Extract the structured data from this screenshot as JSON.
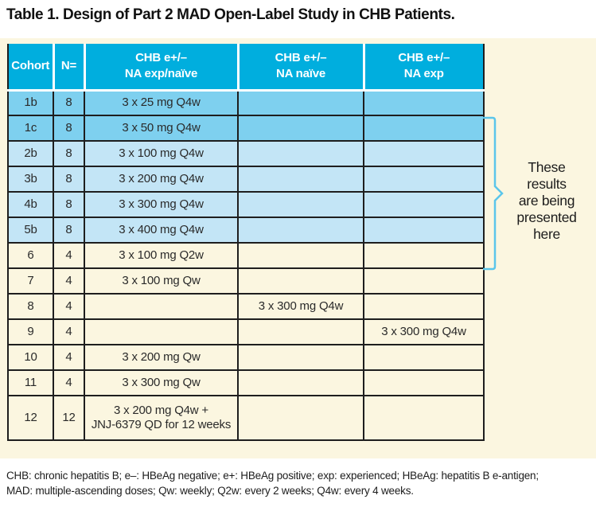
{
  "title": "Table 1. Design of Part 2 MAD Open-Label Study in CHB Patients.",
  "table": {
    "columns": [
      {
        "id": "cohort",
        "lines": [
          "Cohort"
        ]
      },
      {
        "id": "n",
        "lines": [
          "N="
        ]
      },
      {
        "id": "exp_naive",
        "lines": [
          "CHB e+/–",
          "NA exp/naïve"
        ]
      },
      {
        "id": "naive",
        "lines": [
          "CHB e+/–",
          "NA naïve"
        ]
      },
      {
        "id": "exp",
        "lines": [
          "CHB e+/–",
          "NA exp"
        ]
      }
    ],
    "rows": [
      {
        "cohort": "1b",
        "n": "8",
        "exp_naive": "3 x 25 mg Q4w",
        "naive": "",
        "exp": "",
        "tone": "blue-dark",
        "tall": false
      },
      {
        "cohort": "1c",
        "n": "8",
        "exp_naive": "3 x 50 mg Q4w",
        "naive": "",
        "exp": "",
        "tone": "blue-dark",
        "tall": false
      },
      {
        "cohort": "2b",
        "n": "8",
        "exp_naive": "3 x 100 mg Q4w",
        "naive": "",
        "exp": "",
        "tone": "blue-light",
        "tall": false
      },
      {
        "cohort": "3b",
        "n": "8",
        "exp_naive": "3 x 200 mg Q4w",
        "naive": "",
        "exp": "",
        "tone": "blue-light",
        "tall": false
      },
      {
        "cohort": "4b",
        "n": "8",
        "exp_naive": "3 x 300 mg Q4w",
        "naive": "",
        "exp": "",
        "tone": "blue-light",
        "tall": false
      },
      {
        "cohort": "5b",
        "n": "8",
        "exp_naive": "3 x 400 mg Q4w",
        "naive": "",
        "exp": "",
        "tone": "blue-light",
        "tall": false
      },
      {
        "cohort": "6",
        "n": "4",
        "exp_naive": "3 x 100 mg Q2w",
        "naive": "",
        "exp": "",
        "tone": "cream",
        "tall": false
      },
      {
        "cohort": "7",
        "n": "4",
        "exp_naive": "3 x 100 mg Qw",
        "naive": "",
        "exp": "",
        "tone": "cream",
        "tall": false
      },
      {
        "cohort": "8",
        "n": "4",
        "exp_naive": "",
        "naive": "3 x 300 mg Q4w",
        "exp": "",
        "tone": "cream",
        "tall": false
      },
      {
        "cohort": "9",
        "n": "4",
        "exp_naive": "",
        "naive": "",
        "exp": "3 x 300 mg Q4w",
        "tone": "cream",
        "tall": false
      },
      {
        "cohort": "10",
        "n": "4",
        "exp_naive": "3 x 200 mg Qw",
        "naive": "",
        "exp": "",
        "tone": "cream",
        "tall": false
      },
      {
        "cohort": "11",
        "n": "4",
        "exp_naive": "3 x 300 mg Qw",
        "naive": "",
        "exp": "",
        "tone": "cream",
        "tall": false
      },
      {
        "cohort": "12",
        "n": "12",
        "exp_naive": "3 x 200 mg Q4w +\nJNJ-6379 QD for 12 weeks",
        "naive": "",
        "exp": "",
        "tone": "cream",
        "tall": true
      }
    ]
  },
  "annotation": {
    "text": "These results are being presented here",
    "lines": [
      "These",
      "results",
      "are being",
      "presented",
      "here"
    ]
  },
  "footnote": {
    "line1": "CHB: chronic hepatitis B; e–: HBeAg negative; e+: HBeAg positive; exp: experienced; HBeAg: hepatitis B e-antigen;",
    "line2": "MAD: multiple-ascending doses; Qw: weekly; Q2w: every 2 weeks; Q4w: every 4 weeks."
  },
  "colors": {
    "header-cyan": "#00AEDE",
    "row-blue-dark": "#7ED0EF",
    "row-blue-light": "#C3E5F6",
    "cream": "#FBF6E0",
    "border-dark": "#1E1E1E",
    "brace-blue": "#5BC6EB",
    "text-dark": "#1C1C1C"
  }
}
